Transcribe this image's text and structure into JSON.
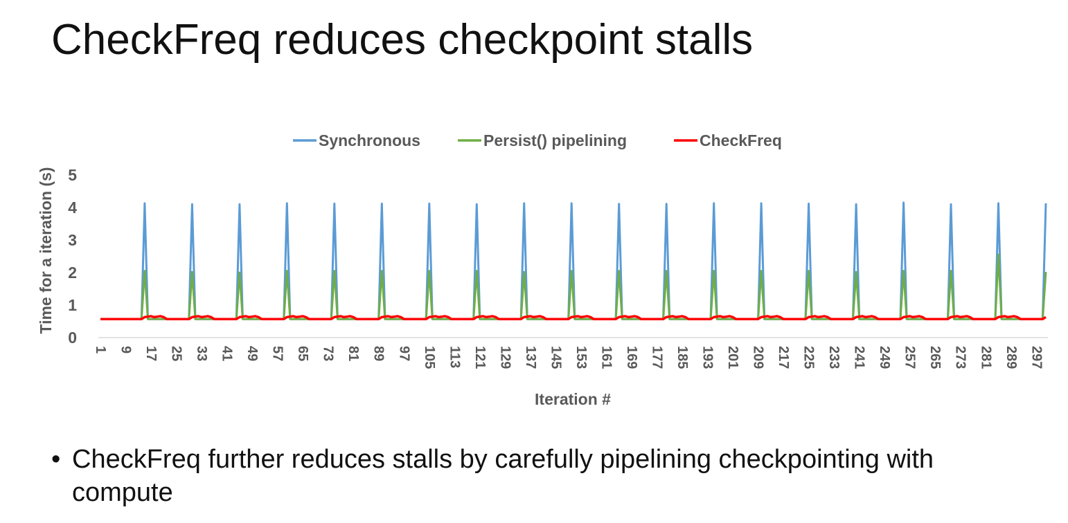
{
  "slide": {
    "title": "CheckFreq reduces checkpoint stalls",
    "bullets": [
      "CheckFreq further reduces stalls by carefully pipelining checkpointing with compute"
    ]
  },
  "chart_data": {
    "type": "line",
    "title": "",
    "xlabel": "Iteration #",
    "ylabel": "Time for a iteration (s)",
    "xlim": [
      1,
      300
    ],
    "ylim": [
      0,
      5
    ],
    "yticks": [
      0,
      1,
      2,
      3,
      4,
      5
    ],
    "xticks": [
      1,
      9,
      17,
      25,
      33,
      41,
      49,
      57,
      65,
      73,
      81,
      89,
      97,
      105,
      113,
      121,
      129,
      137,
      145,
      153,
      161,
      169,
      177,
      185,
      193,
      201,
      209,
      217,
      225,
      233,
      241,
      249,
      257,
      265,
      273,
      281,
      289,
      297
    ],
    "grid": false,
    "legend": "top",
    "baseline": 0.57,
    "spike_iterations": [
      15,
      30,
      45,
      60,
      75,
      90,
      105,
      120,
      135,
      150,
      165,
      180,
      195,
      210,
      225,
      240,
      255,
      270,
      285,
      300
    ],
    "series": [
      {
        "name": "Synchronous",
        "color": "#5b9bd5",
        "baseline": 0.57,
        "spike_values": [
          4.13,
          4.1,
          4.1,
          4.13,
          4.12,
          4.12,
          4.12,
          4.1,
          4.13,
          4.13,
          4.11,
          4.11,
          4.13,
          4.13,
          4.12,
          4.1,
          4.15,
          4.1,
          4.13,
          4.13
        ]
      },
      {
        "name": "Persist() pipelining",
        "color": "#70ad47",
        "baseline": 0.57,
        "spike_values": [
          2.05,
          2.02,
          2.0,
          2.05,
          2.05,
          2.05,
          2.05,
          2.05,
          2.02,
          2.05,
          2.05,
          2.05,
          2.05,
          2.05,
          2.05,
          2.02,
          2.05,
          2.05,
          2.55,
          2.02
        ]
      },
      {
        "name": "CheckFreq",
        "color": "#ff0000",
        "baseline": 0.57,
        "bump_value": 0.63,
        "bump_length": 7
      }
    ]
  }
}
